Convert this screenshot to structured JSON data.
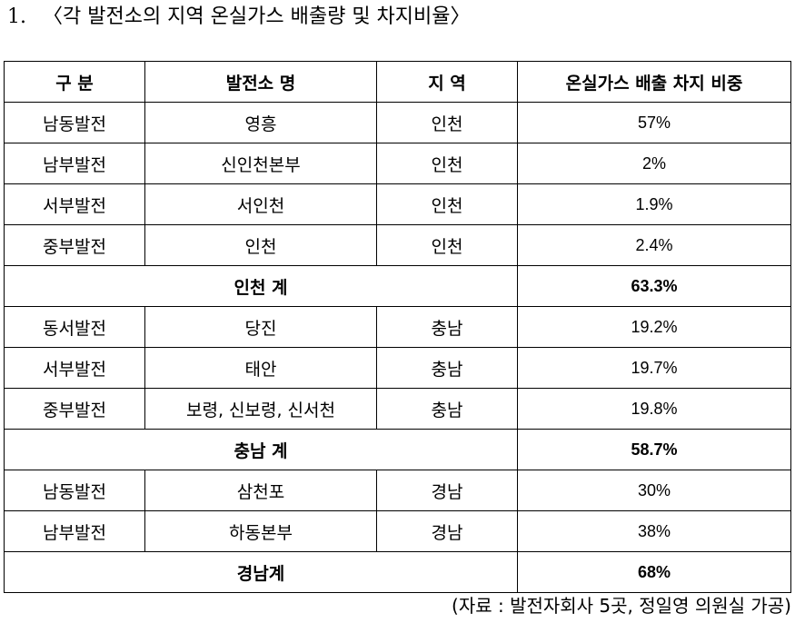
{
  "title": {
    "number": "1.",
    "text": "〈각 발전소의 지역 온실가스 배출량 및 차지비율〉"
  },
  "table": {
    "headers": [
      "구 분",
      "발전소 명",
      "지 역",
      "온실가스 배출 차지 비중"
    ],
    "groups": [
      {
        "rows": [
          {
            "company": "남동발전",
            "plant": "영흥",
            "region": "인천",
            "share": "57%"
          },
          {
            "company": "남부발전",
            "plant": "신인천본부",
            "region": "인천",
            "share": "2%"
          },
          {
            "company": "서부발전",
            "plant": "서인천",
            "region": "인천",
            "share": "1.9%"
          },
          {
            "company": "중부발전",
            "plant": "인천",
            "region": "인천",
            "share": "2.4%"
          }
        ],
        "subtotal_label": "인천 계",
        "subtotal_value": "63.3%"
      },
      {
        "rows": [
          {
            "company": "동서발전",
            "plant": "당진",
            "region": "충남",
            "share": "19.2%"
          },
          {
            "company": "서부발전",
            "plant": "태안",
            "region": "충남",
            "share": "19.7%"
          },
          {
            "company": "중부발전",
            "plant": "보령, 신보령, 신서천",
            "region": "충남",
            "share": "19.8%"
          }
        ],
        "subtotal_label": "충남 계",
        "subtotal_value": "58.7%"
      },
      {
        "rows": [
          {
            "company": "남동발전",
            "plant": "삼천포",
            "region": "경남",
            "share": "30%"
          },
          {
            "company": "남부발전",
            "plant": "하동본부",
            "region": "경남",
            "share": "38%"
          }
        ],
        "subtotal_label": "경남계",
        "subtotal_value": "68%"
      }
    ]
  },
  "source": "(자료 : 발전자회사 5곳, 정일영 의원실 가공)"
}
